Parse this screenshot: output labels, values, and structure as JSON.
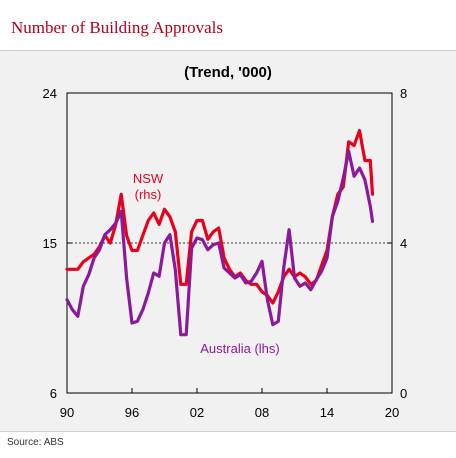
{
  "header": {
    "title": "Number of Building Approvals"
  },
  "footer": {
    "source": "Source: ABS"
  },
  "colors": {
    "title": "#b3001b",
    "nsw": "#e8001c",
    "australia": "#8b1a9b",
    "panel": "#f1f1f1"
  },
  "chart_data": {
    "type": "line",
    "title": "",
    "subtitle": "(Trend, '000)",
    "xlabel": "",
    "ylabel_left": "",
    "ylabel_right": "",
    "x_range": [
      1990,
      2020
    ],
    "x_ticks": [
      "90",
      "96",
      "02",
      "08",
      "14",
      "20"
    ],
    "x_tick_values": [
      1990,
      1996,
      2002,
      2008,
      2014,
      2020
    ],
    "y_left_range": [
      6,
      24
    ],
    "y_left_ticks": [
      "6",
      "15",
      "24"
    ],
    "y_left_tick_values": [
      6,
      15,
      24
    ],
    "y_right_range": [
      0,
      8
    ],
    "y_right_ticks": [
      "0",
      "4",
      "8"
    ],
    "y_right_tick_values": [
      0,
      4,
      8
    ],
    "reference_line": 15,
    "grid": false,
    "series": [
      {
        "name": "NSW",
        "name_line2": "(rhs)",
        "axis": "right",
        "x": [
          1990.0,
          1990.5,
          1991.0,
          1991.5,
          1992.0,
          1992.5,
          1993.0,
          1993.5,
          1994.0,
          1994.5,
          1995.0,
          1995.5,
          1996.0,
          1996.5,
          1997.0,
          1997.5,
          1998.0,
          1998.5,
          1999.0,
          1999.5,
          2000.0,
          2000.5,
          2001.0,
          2001.5,
          2002.0,
          2002.5,
          2003.0,
          2003.5,
          2004.0,
          2004.5,
          2005.0,
          2005.5,
          2006.0,
          2006.5,
          2007.0,
          2007.5,
          2008.0,
          2008.5,
          2009.0,
          2009.5,
          2010.0,
          2010.5,
          2011.0,
          2011.5,
          2012.0,
          2012.5,
          2013.0,
          2013.5,
          2014.0,
          2014.5,
          2015.0,
          2015.5,
          2016.0,
          2016.5,
          2017.0,
          2017.5,
          2018.0,
          2018.2
        ],
        "values": [
          3.3,
          3.3,
          3.3,
          3.5,
          3.6,
          3.7,
          3.9,
          4.2,
          4.0,
          4.5,
          5.3,
          4.2,
          3.8,
          3.8,
          4.2,
          4.6,
          4.8,
          4.5,
          4.9,
          4.7,
          4.3,
          2.9,
          2.9,
          4.3,
          4.6,
          4.6,
          4.1,
          4.3,
          4.4,
          3.6,
          3.3,
          3.1,
          3.2,
          3.0,
          2.9,
          2.9,
          2.7,
          2.6,
          2.4,
          2.7,
          3.1,
          3.3,
          3.1,
          3.2,
          3.1,
          2.9,
          3.0,
          3.4,
          3.8,
          4.7,
          5.3,
          5.5,
          6.7,
          6.6,
          7.0,
          6.2,
          6.2,
          5.3
        ]
      },
      {
        "name": "Australia (lhs)",
        "axis": "left",
        "x": [
          1990.0,
          1990.5,
          1991.0,
          1991.5,
          1992.0,
          1992.5,
          1993.0,
          1993.5,
          1994.0,
          1994.5,
          1995.0,
          1995.5,
          1996.0,
          1996.5,
          1997.0,
          1997.5,
          1998.0,
          1998.5,
          1999.0,
          1999.5,
          2000.0,
          2000.5,
          2001.0,
          2001.5,
          2002.0,
          2002.5,
          2003.0,
          2003.5,
          2004.0,
          2004.5,
          2005.0,
          2005.5,
          2006.0,
          2006.5,
          2007.0,
          2007.5,
          2008.0,
          2008.5,
          2009.0,
          2009.5,
          2010.0,
          2010.5,
          2011.0,
          2011.5,
          2012.0,
          2012.5,
          2013.0,
          2013.5,
          2014.0,
          2014.5,
          2015.0,
          2015.5,
          2016.0,
          2016.5,
          2017.0,
          2017.5,
          2018.0,
          2018.2
        ],
        "values": [
          11.6,
          11.0,
          10.6,
          12.4,
          13.1,
          14.1,
          14.6,
          15.5,
          15.8,
          16.2,
          16.9,
          12.9,
          10.2,
          10.3,
          11.0,
          12.0,
          13.2,
          13.0,
          15.0,
          15.5,
          13.4,
          9.5,
          9.5,
          14.7,
          15.3,
          15.2,
          14.6,
          14.9,
          15.0,
          13.5,
          13.2,
          12.9,
          13.1,
          12.6,
          12.7,
          13.2,
          13.9,
          11.6,
          10.1,
          10.3,
          13.5,
          15.8,
          12.9,
          12.4,
          12.6,
          12.2,
          12.8,
          13.3,
          14.1,
          16.6,
          17.5,
          18.9,
          20.5,
          19.0,
          19.5,
          18.8,
          17.2,
          16.3
        ]
      }
    ],
    "annotations": [
      {
        "text": "NSW",
        "series": "NSW"
      },
      {
        "text": "(rhs)",
        "series": "NSW"
      },
      {
        "text": "Australia (lhs)",
        "series": "Australia (lhs)"
      }
    ]
  }
}
